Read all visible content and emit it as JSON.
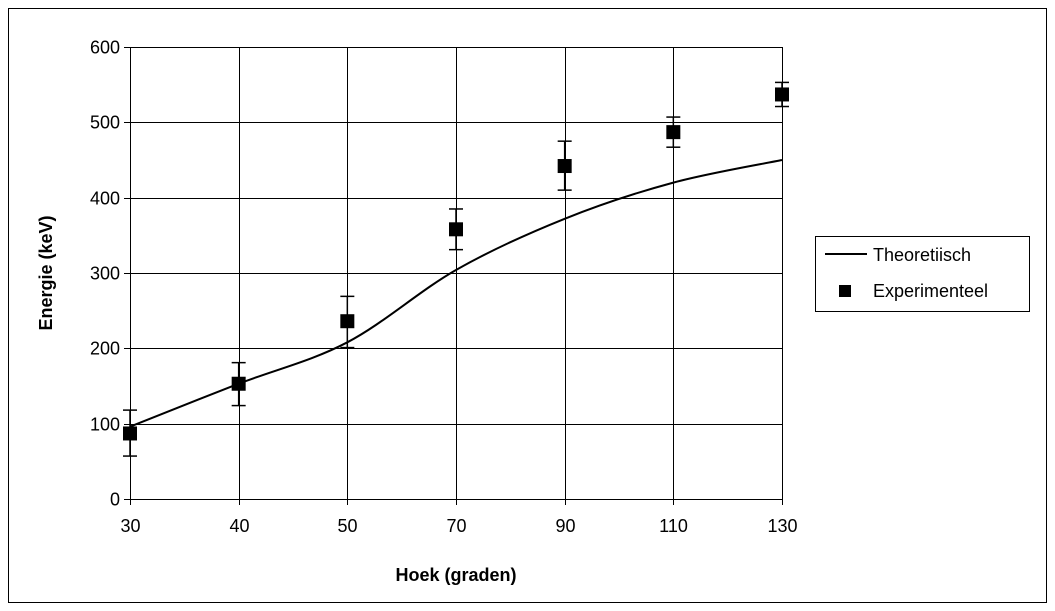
{
  "chart_data": {
    "type": "scatter",
    "title": "",
    "xlabel": "Hoek (graden)",
    "ylabel": "Energie (keV)",
    "x_categories": [
      "30",
      "40",
      "50",
      "70",
      "90",
      "110",
      "130"
    ],
    "ylim": [
      0,
      600
    ],
    "yticks": [
      "0",
      "100",
      "200",
      "300",
      "400",
      "500",
      "600"
    ],
    "grid": true,
    "legend_position": "right",
    "series": [
      {
        "name": "Theoretiisch",
        "kind": "line",
        "color": "#000000",
        "values": [
          96,
          153,
          208,
          304,
          372,
          420,
          450
        ]
      },
      {
        "name": "Experimenteel",
        "kind": "markers",
        "marker": "square",
        "color": "#000000",
        "values": [
          87,
          153,
          236,
          358,
          442,
          487,
          537
        ],
        "error_upper": [
          118,
          181,
          269,
          385,
          475,
          507,
          553
        ],
        "error_lower": [
          57,
          124,
          201,
          331,
          410,
          467,
          521
        ]
      }
    ]
  }
}
